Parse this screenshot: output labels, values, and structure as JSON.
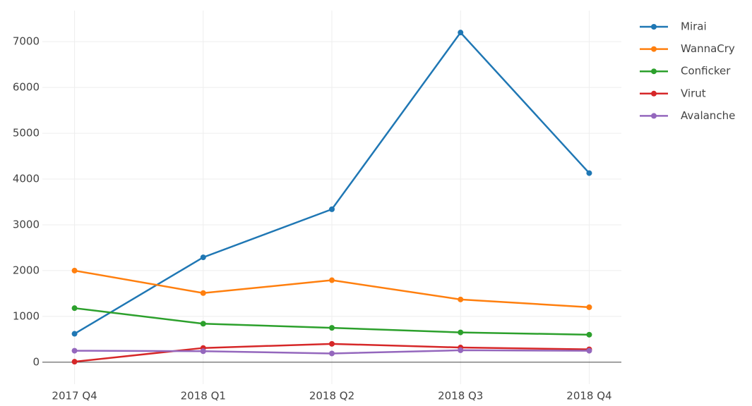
{
  "chart_data": {
    "type": "line",
    "categories": [
      "2017 Q4",
      "2018 Q1",
      "2018 Q2",
      "2018 Q3",
      "2018 Q4"
    ],
    "series": [
      {
        "name": "Mirai",
        "color": "#1f77b4",
        "values": [
          620,
          2290,
          3340,
          7200,
          4130
        ]
      },
      {
        "name": "WannaCry",
        "color": "#ff7f0e",
        "values": [
          2000,
          1510,
          1790,
          1370,
          1200
        ]
      },
      {
        "name": "Conficker",
        "color": "#2ca02c",
        "values": [
          1180,
          840,
          750,
          650,
          600
        ]
      },
      {
        "name": "Virut",
        "color": "#d62728",
        "values": [
          10,
          310,
          400,
          320,
          280
        ]
      },
      {
        "name": "Avalanche",
        "color": "#9467bd",
        "values": [
          250,
          240,
          190,
          260,
          250
        ]
      }
    ],
    "ylim": [
      -480,
      7680
    ],
    "yticks": [
      0,
      1000,
      2000,
      3000,
      4000,
      5000,
      6000,
      7000
    ],
    "grid": true,
    "legend": "right"
  }
}
